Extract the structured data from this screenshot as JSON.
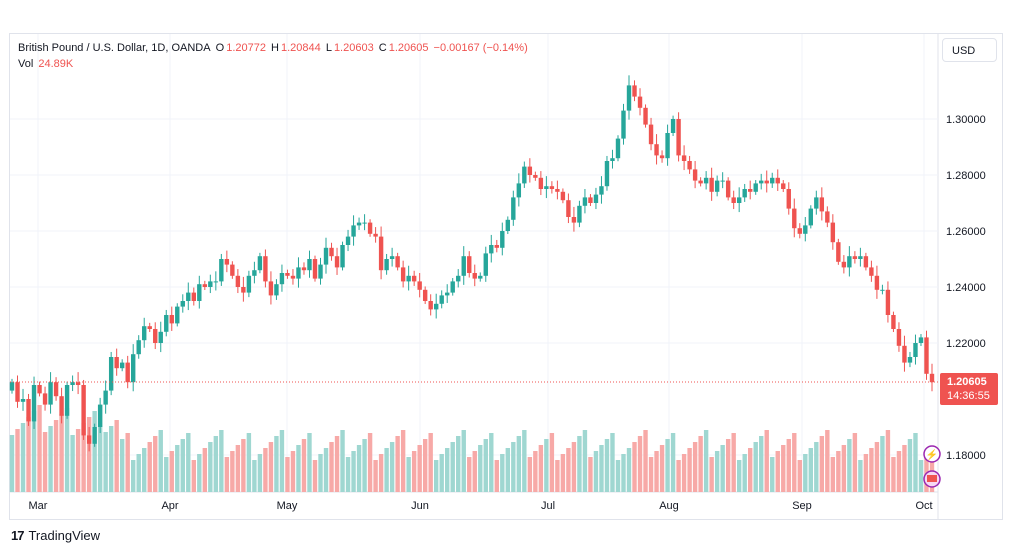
{
  "legend": {
    "symbol": "British Pound / U.S. Dollar, 1D, OANDA",
    "o_label": "O",
    "o_value": "1.20772",
    "h_label": "H",
    "h_value": "1.20844",
    "l_label": "L",
    "l_value": "1.20603",
    "c_label": "C",
    "c_value": "1.20605",
    "change": "−0.00167 (−0.14%)",
    "vol_label": "Vol",
    "vol_value": "24.89K"
  },
  "currency": "USD",
  "price_tag": {
    "price": "1.20605",
    "countdown": "14:36:55"
  },
  "brand": {
    "logo": "17",
    "name": "TradingView"
  },
  "colors": {
    "up": "#26a69a",
    "down": "#ef5350",
    "up_volume": "#9fd7d1",
    "down_volume": "#f7a9a7",
    "grid": "#f0f3fa",
    "text": "#131722"
  },
  "icons": [
    "lightning-icon",
    "calendar-flag-icon"
  ],
  "chart_data": {
    "type": "candlestick",
    "symbol": "GBPUSD",
    "ylim": [
      1.172,
      1.318
    ],
    "y_ticks": [
      "1.30000",
      "1.28000",
      "1.26000",
      "1.24000",
      "1.22000",
      "1.18000"
    ],
    "x_tick_labels": [
      "Mar",
      "Apr",
      "May",
      "Jun",
      "Jul",
      "Aug",
      "Sep",
      "Oct"
    ],
    "last_price": 1.20605,
    "closes": [
      1.206,
      1.199,
      1.2,
      1.192,
      1.205,
      1.202,
      1.198,
      1.206,
      1.201,
      1.194,
      1.205,
      1.206,
      1.205,
      1.187,
      1.184,
      1.19,
      1.198,
      1.203,
      1.215,
      1.211,
      1.213,
      1.206,
      1.216,
      1.221,
      1.226,
      1.225,
      1.22,
      1.224,
      1.23,
      1.227,
      1.233,
      1.235,
      1.238,
      1.235,
      1.241,
      1.24,
      1.242,
      1.242,
      1.25,
      1.248,
      1.244,
      1.24,
      1.238,
      1.244,
      1.246,
      1.251,
      1.242,
      1.237,
      1.241,
      1.245,
      1.244,
      1.243,
      1.247,
      1.246,
      1.25,
      1.243,
      1.248,
      1.254,
      1.251,
      1.247,
      1.255,
      1.258,
      1.262,
      1.263,
      1.263,
      1.259,
      1.258,
      1.246,
      1.25,
      1.251,
      1.247,
      1.242,
      1.244,
      1.242,
      1.239,
      1.235,
      1.232,
      1.234,
      1.237,
      1.238,
      1.242,
      1.244,
      1.251,
      1.245,
      1.243,
      1.244,
      1.252,
      1.255,
      1.254,
      1.26,
      1.264,
      1.272,
      1.277,
      1.283,
      1.28,
      1.279,
      1.275,
      1.276,
      1.275,
      1.274,
      1.271,
      1.265,
      1.263,
      1.269,
      1.272,
      1.27,
      1.273,
      1.276,
      1.285,
      1.286,
      1.293,
      1.303,
      1.312,
      1.308,
      1.304,
      1.298,
      1.291,
      1.287,
      1.286,
      1.295,
      1.3,
      1.287,
      1.285,
      1.282,
      1.278,
      1.277,
      1.279,
      1.274,
      1.278,
      1.278,
      1.272,
      1.27,
      1.272,
      1.275,
      1.274,
      1.277,
      1.278,
      1.277,
      1.279,
      1.277,
      1.275,
      1.268,
      1.261,
      1.259,
      1.262,
      1.268,
      1.272,
      1.267,
      1.263,
      1.256,
      1.249,
      1.247,
      1.251,
      1.25,
      1.251,
      1.247,
      1.244,
      1.239,
      1.239,
      1.23,
      1.225,
      1.219,
      1.213,
      1.215,
      1.22,
      1.222,
      1.209,
      1.206
    ]
  }
}
